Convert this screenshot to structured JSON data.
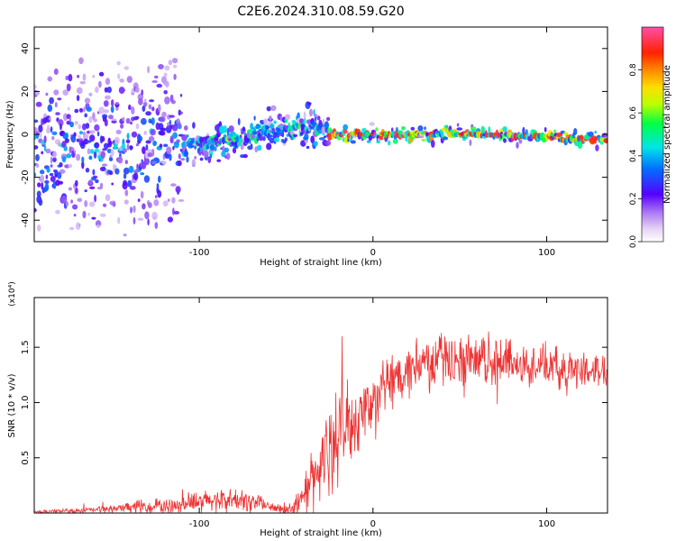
{
  "title": "C2E6.2024.310.08.59.G20",
  "colorbar": {
    "label": "Normalized spectral amplitude",
    "ticks": [
      "0.0",
      "0.2",
      "0.4",
      "0.6",
      "0.8"
    ],
    "tick_values": [
      0.0,
      0.2,
      0.4,
      0.6,
      0.8
    ],
    "range": [
      0,
      1
    ]
  },
  "chart_data": [
    {
      "type": "heatmap",
      "xlabel": "Height of straight line (km)",
      "ylabel": "Frequency (Hz)",
      "xlim": [
        -195,
        135
      ],
      "ylim": [
        -50,
        50
      ],
      "xticks": [
        -100,
        0,
        100
      ],
      "xtick_labels": [
        "-100",
        "0",
        "100"
      ],
      "yticks": [
        -40,
        -20,
        0,
        20,
        40
      ],
      "ytick_labels": [
        "-40",
        "-20",
        "0",
        "20",
        "40"
      ],
      "ridge": {
        "x": [
          -195,
          -170,
          -150,
          -130,
          -110,
          -90,
          -70,
          -55,
          -40,
          -30,
          -25,
          0,
          50,
          100,
          120,
          135
        ],
        "freq": [
          -8,
          -7,
          -7,
          -6,
          -5,
          -3,
          -1,
          2,
          4,
          3,
          0,
          0,
          0,
          -1,
          -2,
          -3
        ]
      },
      "noisy_below_km": -110,
      "stable_above_km": -25
    },
    {
      "type": "line",
      "xlabel": "Height of straight line (km)",
      "ylabel": "SNR (10 * v/v)",
      "multiplier": "(x10⁴)",
      "xlim": [
        -195,
        135
      ],
      "ylim": [
        0,
        1.95
      ],
      "xticks": [
        -100,
        0,
        100
      ],
      "xtick_labels": [
        "-100",
        "0",
        "100"
      ],
      "yticks": [
        0.5,
        1.0,
        1.5
      ],
      "ytick_labels": [
        "0.5",
        "1.0",
        "1.5"
      ],
      "color": "#ee3333",
      "series": [
        {
          "x": [
            -195,
            -170,
            -150,
            -130,
            -110,
            -95,
            -85,
            -75,
            -65,
            -60,
            -50,
            -45,
            -40,
            -35,
            -30,
            -25,
            -20,
            -15,
            -10,
            -5,
            0,
            5,
            10,
            15,
            20,
            25,
            30,
            40,
            50,
            60,
            70,
            80,
            90,
            100,
            110,
            120,
            130,
            135
          ],
          "y": [
            0.01,
            0.02,
            0.04,
            0.06,
            0.08,
            0.11,
            0.12,
            0.11,
            0.1,
            0.05,
            0.03,
            0.06,
            0.15,
            0.3,
            0.45,
            0.55,
            0.7,
            0.8,
            0.85,
            0.92,
            1.0,
            1.1,
            1.2,
            1.27,
            1.32,
            1.35,
            1.37,
            1.4,
            1.38,
            1.37,
            1.38,
            1.37,
            1.35,
            1.33,
            1.3,
            1.3,
            1.3,
            1.28
          ],
          "noise_amplitude": [
            0.01,
            0.02,
            0.03,
            0.05,
            0.06,
            0.08,
            0.09,
            0.08,
            0.07,
            0.04,
            0.05,
            0.08,
            0.12,
            0.25,
            0.3,
            0.35,
            0.35,
            0.3,
            0.3,
            0.25,
            0.22,
            0.2,
            0.2,
            0.18,
            0.18,
            0.18,
            0.2,
            0.2,
            0.18,
            0.18,
            0.18,
            0.17,
            0.17,
            0.15,
            0.15,
            0.13,
            0.12,
            0.12
          ]
        }
      ]
    }
  ]
}
